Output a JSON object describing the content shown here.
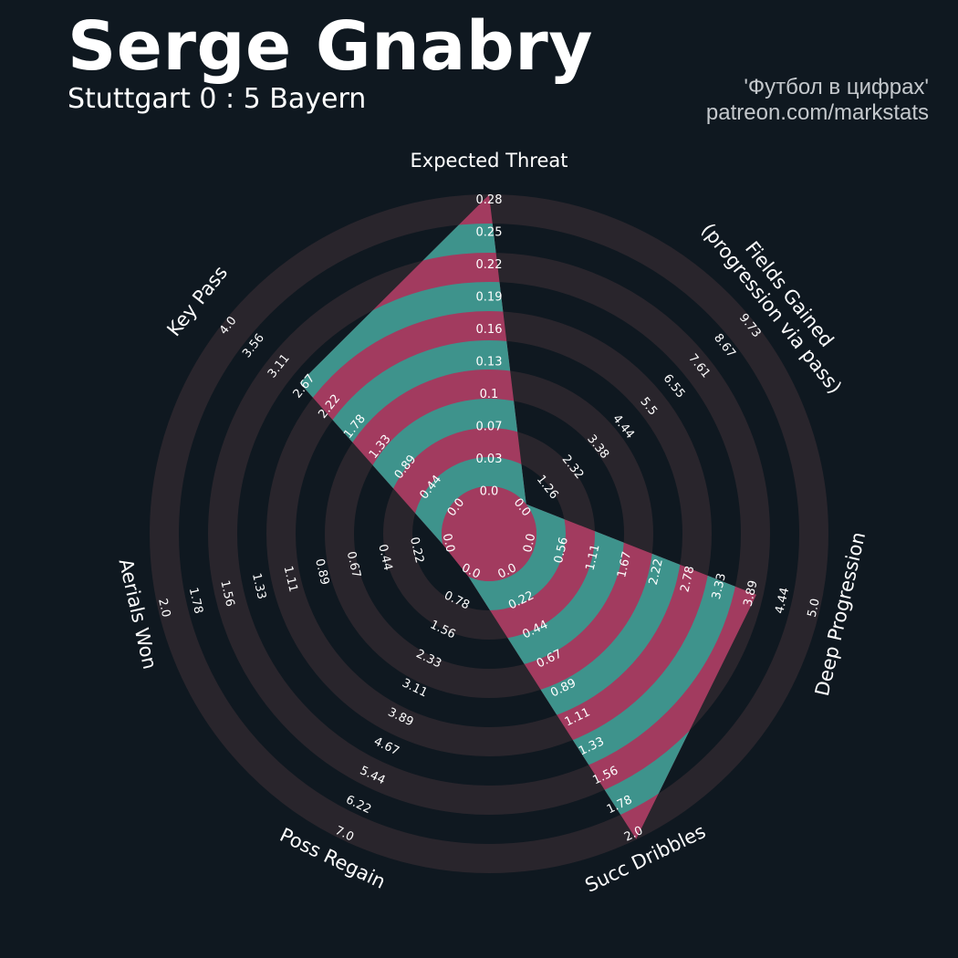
{
  "header": {
    "title": "Serge Gnabry",
    "subtitle": "Stuttgart 0 : 5 Bayern",
    "credit_line1": "'Футбол в цифрах'",
    "credit_line2": "patreon.com/markstats"
  },
  "colors": {
    "background": "#0f1820",
    "ring_band": "#29252c",
    "fill_main": "#3e938c",
    "fill_alt": "#a23b5f"
  },
  "chart_data": {
    "type": "radar",
    "title": "Serge Gnabry",
    "rings": 5,
    "axes": [
      {
        "name": "Expected Threat",
        "ticks": [
          "0.0",
          "0.03",
          "0.07",
          "0.1",
          "0.13",
          "0.16",
          "0.19",
          "0.22",
          "0.25",
          "0.28"
        ],
        "value": 0.28
      },
      {
        "name": "Fields Gained\n(progression via pass)",
        "ticks": [
          "0.0",
          "1.26",
          "2.32",
          "3.38",
          "4.44",
          "5.5",
          "6.55",
          "7.61",
          "8.67",
          "9.73"
        ],
        "value": 0.0
      },
      {
        "name": "Deep Progression",
        "ticks": [
          "0.0",
          "0.56",
          "1.11",
          "1.67",
          "2.22",
          "2.78",
          "3.33",
          "3.89",
          "4.44",
          "5.0"
        ],
        "value": 3.89
      },
      {
        "name": "Succ Dribbles",
        "ticks": [
          "0.0",
          "0.22",
          "0.44",
          "0.67",
          "0.89",
          "1.11",
          "1.33",
          "1.56",
          "1.78",
          "2.0"
        ],
        "value": 2.0
      },
      {
        "name": "Poss Regain",
        "ticks": [
          "0.0",
          "0.78",
          "1.56",
          "2.33",
          "3.11",
          "3.89",
          "4.67",
          "5.44",
          "6.22",
          "7.0"
        ],
        "value": 0.0
      },
      {
        "name": "Aerials Won",
        "ticks": [
          "0.0",
          "0.22",
          "0.44",
          "0.67",
          "0.89",
          "1.11",
          "1.33",
          "1.56",
          "1.78",
          "2.0"
        ],
        "value": 0.0
      },
      {
        "name": "Key Pass",
        "ticks": [
          "0.0",
          "0.44",
          "0.89",
          "1.33",
          "1.78",
          "2.22",
          "2.67",
          "3.11",
          "3.56",
          "4.0"
        ],
        "value": 2.67
      }
    ]
  }
}
